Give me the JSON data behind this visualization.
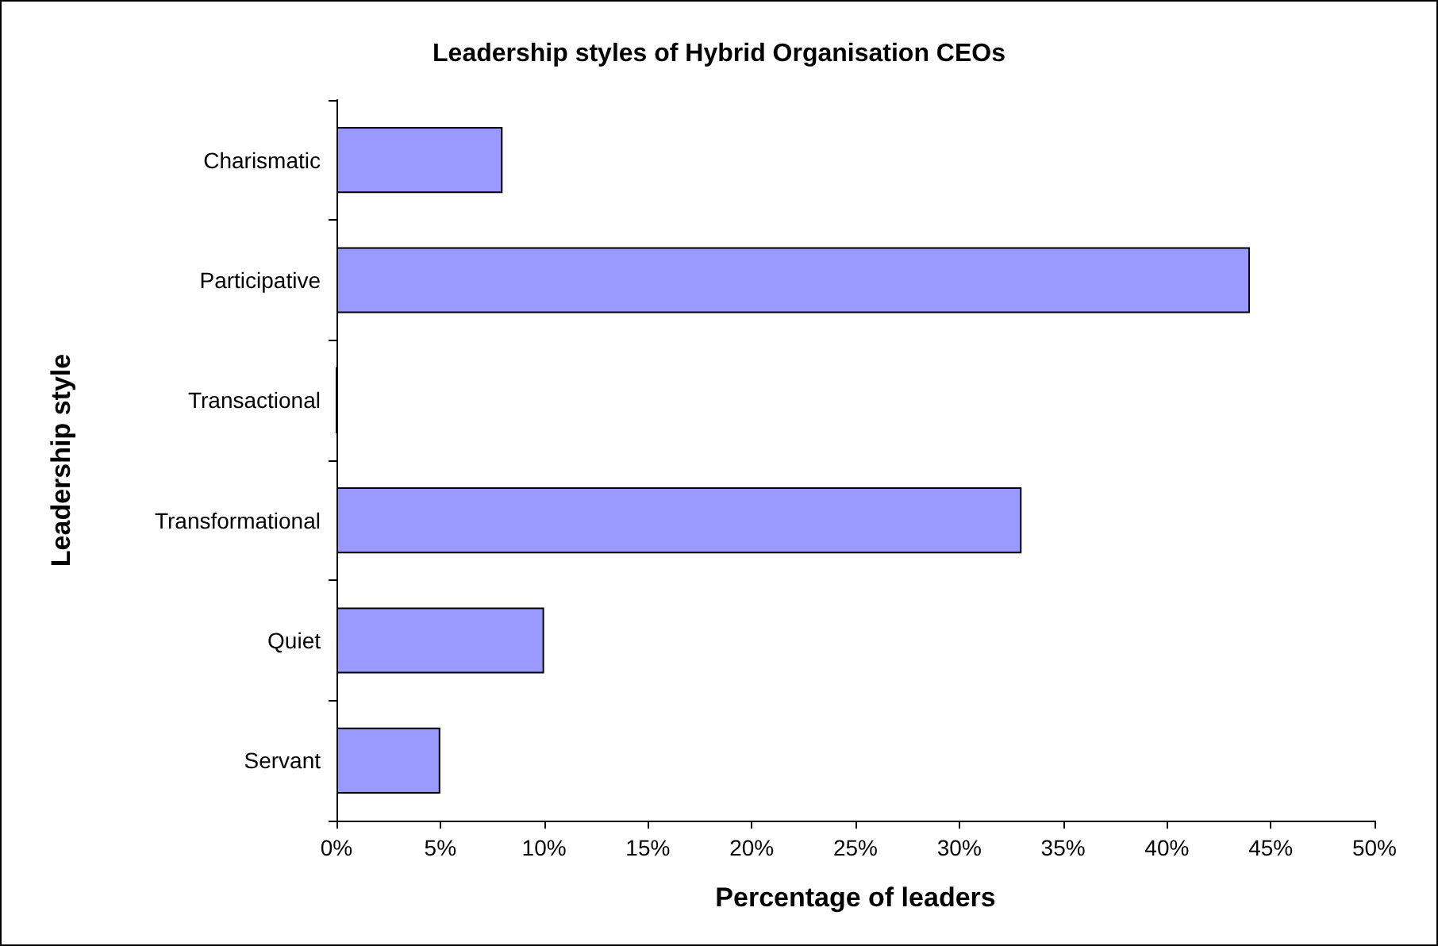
{
  "chart_data": {
    "type": "bar",
    "orientation": "horizontal",
    "title": "Leadership styles of Hybrid Organisation CEOs",
    "xlabel": "Percentage of leaders",
    "ylabel": "Leadership style",
    "categories": [
      "Charismatic",
      "Participative",
      "Transactional",
      "Transformational",
      "Quiet",
      "Servant"
    ],
    "values": [
      8,
      44,
      0,
      33,
      10,
      5
    ],
    "color": "#9999ff",
    "xlim": [
      0,
      50
    ],
    "xticks": [
      {
        "value": 0,
        "label": "0%"
      },
      {
        "value": 5,
        "label": "5%"
      },
      {
        "value": 10,
        "label": "10%"
      },
      {
        "value": 15,
        "label": "15%"
      },
      {
        "value": 20,
        "label": "20%"
      },
      {
        "value": 25,
        "label": "25%"
      },
      {
        "value": 30,
        "label": "30%"
      },
      {
        "value": 35,
        "label": "35%"
      },
      {
        "value": 40,
        "label": "40%"
      },
      {
        "value": 45,
        "label": "45%"
      },
      {
        "value": 50,
        "label": "50%"
      }
    ],
    "data_labels": false
  }
}
